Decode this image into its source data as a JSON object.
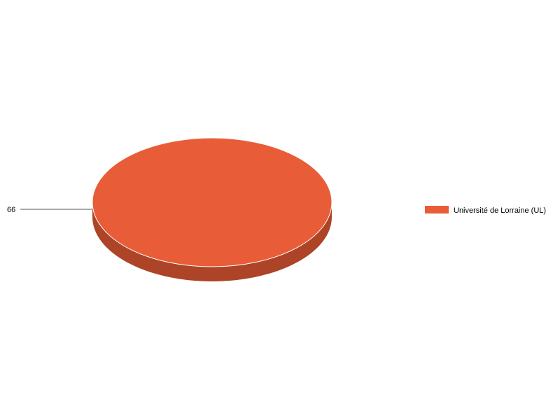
{
  "chart_data": {
    "type": "pie",
    "style": "3d",
    "slices": [
      {
        "label": "Université de Lorraine (UL)",
        "value": 66,
        "color": "#e85d38",
        "side_color": "#ad4428"
      }
    ],
    "data_labels": [
      "66"
    ],
    "legend": {
      "placement": "right",
      "entries": [
        "Université de Lorraine (UL)"
      ]
    }
  }
}
